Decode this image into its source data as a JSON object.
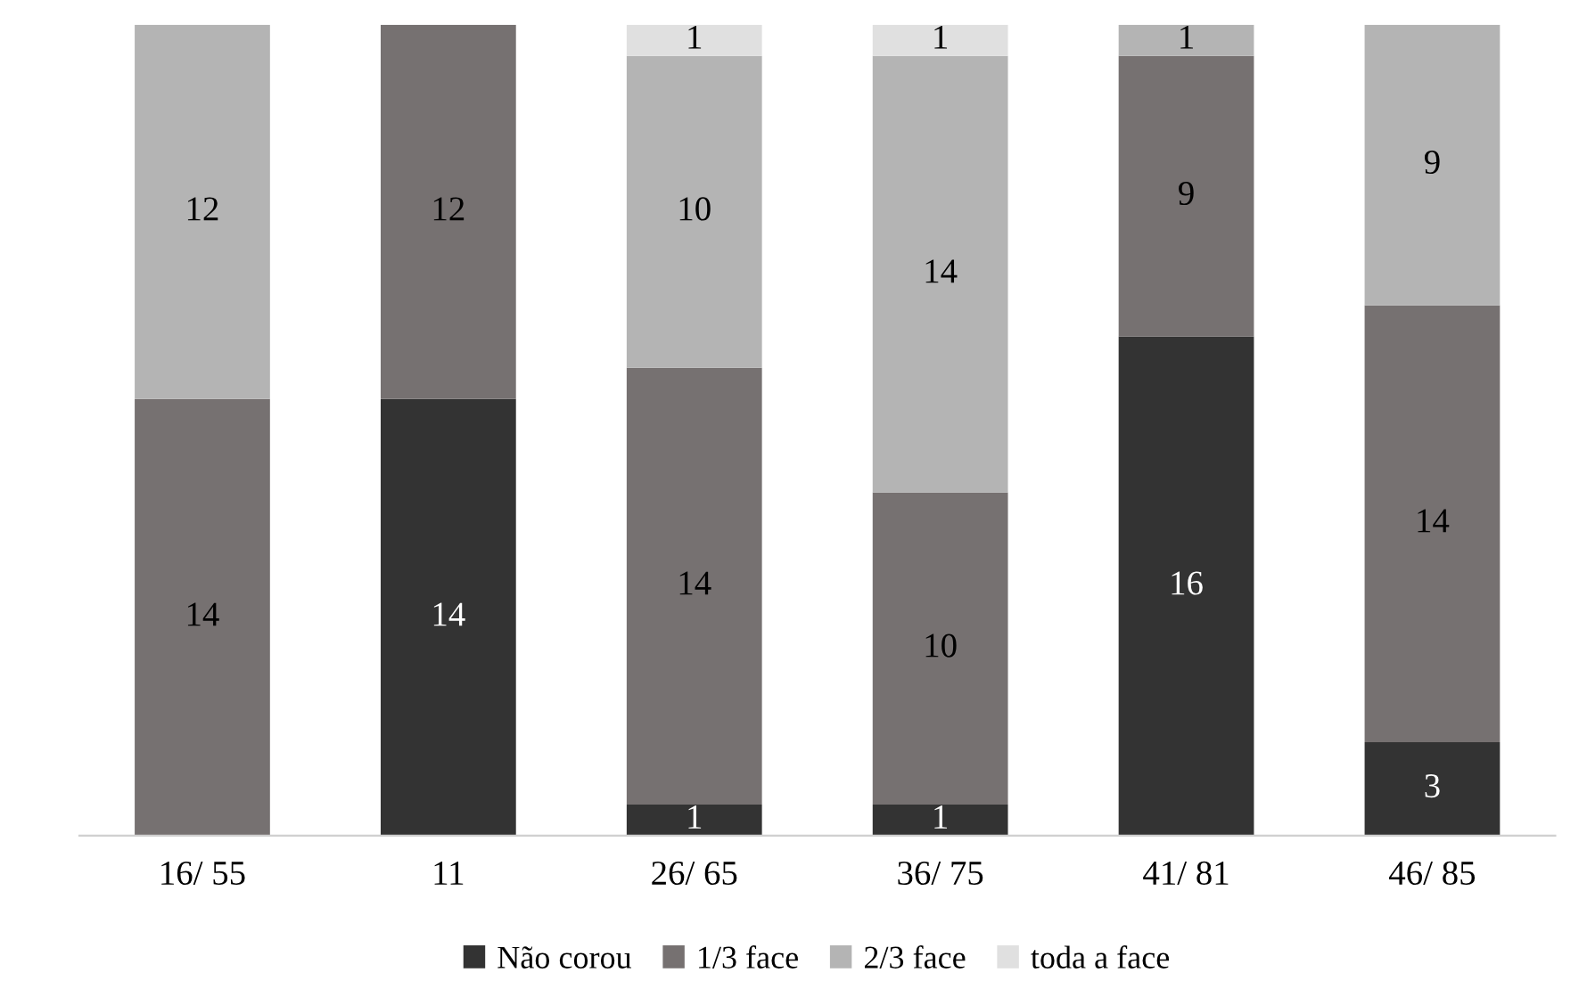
{
  "chart_data": {
    "type": "bar",
    "stacked": true,
    "data_labels": true,
    "legend": "bottom",
    "grid": false,
    "categories": [
      "16/ 55",
      "11",
      "26/ 65",
      "36/ 75",
      "41/ 81",
      "46/ 85"
    ],
    "series": [
      {
        "name": "Não corou",
        "color": "#333333",
        "values": [
          null,
          14,
          1,
          1,
          16,
          3
        ]
      },
      {
        "name": "1/3 face",
        "color": "#767171",
        "values": [
          14,
          12,
          14,
          10,
          9,
          14
        ]
      },
      {
        "name": "2/3 face",
        "color": "#b4b4b4",
        "values": [
          12,
          null,
          10,
          14,
          1,
          9
        ]
      },
      {
        "name": "toda a face",
        "color": "#e0e0e0",
        "values": [
          null,
          null,
          1,
          1,
          null,
          null
        ]
      }
    ]
  }
}
